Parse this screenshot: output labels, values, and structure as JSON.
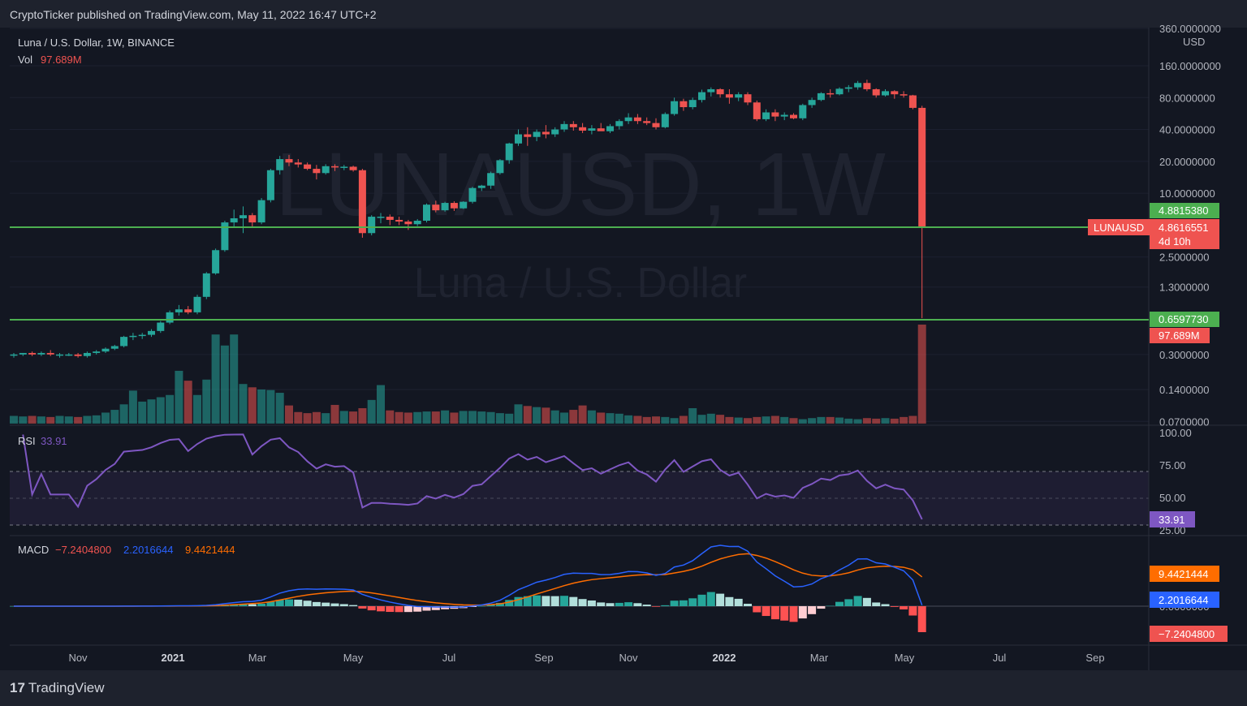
{
  "header": {
    "published": "CryptoTicker published on TradingView.com, May 11, 2022 16:47 UTC+2"
  },
  "legend": {
    "symbol_line": "Luna / U.S. Dollar, 1W, BINANCE",
    "vol_label": "Vol",
    "vol_value": "97.689M",
    "rsi_label": "RSI",
    "rsi_value": "33.91",
    "macd_label": "MACD",
    "macd_v1": "−7.2404800",
    "macd_v2": "2.2016644",
    "macd_v3": "9.4421444"
  },
  "watermark": {
    "symbol": "LUNAUSD, 1W",
    "name": "Luna / U.S. Dollar"
  },
  "price_axis": {
    "unit": "USD",
    "ticks": [
      "360.0000000",
      "160.0000000",
      "80.0000000",
      "40.0000000",
      "20.0000000",
      "10.0000000",
      "2.5000000",
      "1.3000000",
      "0.3000000",
      "0.1400000",
      "0.0700000"
    ]
  },
  "badges": {
    "level_high": "4.8815380",
    "symbol_tag": "LUNAUSD",
    "last_price": "4.8616551",
    "countdown": "4d 10h",
    "level_low": "0.6597730",
    "volume": "97.689M",
    "rsi": "33.91",
    "macd_signal": "9.4421444",
    "macd_line": "2.2016644",
    "macd_hist": "−7.2404800"
  },
  "rsi_axis": [
    "100.00",
    "75.00",
    "50.00",
    "25.00"
  ],
  "macd_axis": [
    "0.0000000"
  ],
  "time_axis": [
    {
      "label": "Nov",
      "bold": false
    },
    {
      "label": "2021",
      "bold": true
    },
    {
      "label": "Mar",
      "bold": false
    },
    {
      "label": "May",
      "bold": false
    },
    {
      "label": "Jul",
      "bold": false
    },
    {
      "label": "Sep",
      "bold": false
    },
    {
      "label": "Nov",
      "bold": false
    },
    {
      "label": "2022",
      "bold": true
    },
    {
      "label": "Mar",
      "bold": false
    },
    {
      "label": "May",
      "bold": false
    },
    {
      "label": "Jul",
      "bold": false
    },
    {
      "label": "Sep",
      "bold": false
    }
  ],
  "footer": {
    "brand": "TradingView",
    "logo_mark": "17"
  },
  "colors": {
    "up": "#26a69a",
    "down": "#ef5350",
    "level": "#4caf50",
    "rsi": "#7e57c2",
    "macd": "#2962ff",
    "signal": "#ff6d00",
    "bg": "#131722"
  },
  "chart_data": {
    "type": "candlestick",
    "title": "Luna / U.S. Dollar, 1W, BINANCE",
    "y_scale": "log",
    "ylim": [
      0.07,
      360
    ],
    "levels": [
      4.881538,
      0.659773
    ],
    "last_price": 4.8616551,
    "candles": [
      [
        0.3,
        0.31,
        0.28,
        0.3
      ],
      [
        0.3,
        0.31,
        0.29,
        0.31
      ],
      [
        0.31,
        0.32,
        0.29,
        0.3
      ],
      [
        0.3,
        0.32,
        0.29,
        0.31
      ],
      [
        0.31,
        0.33,
        0.29,
        0.3
      ],
      [
        0.3,
        0.31,
        0.28,
        0.3
      ],
      [
        0.3,
        0.31,
        0.29,
        0.3
      ],
      [
        0.3,
        0.31,
        0.28,
        0.29
      ],
      [
        0.29,
        0.32,
        0.28,
        0.31
      ],
      [
        0.31,
        0.33,
        0.3,
        0.32
      ],
      [
        0.32,
        0.35,
        0.31,
        0.34
      ],
      [
        0.34,
        0.37,
        0.33,
        0.36
      ],
      [
        0.36,
        0.45,
        0.35,
        0.44
      ],
      [
        0.44,
        0.48,
        0.41,
        0.45
      ],
      [
        0.45,
        0.48,
        0.42,
        0.46
      ],
      [
        0.46,
        0.52,
        0.44,
        0.5
      ],
      [
        0.5,
        0.62,
        0.48,
        0.6
      ],
      [
        0.6,
        0.78,
        0.58,
        0.75
      ],
      [
        0.75,
        0.88,
        0.7,
        0.8
      ],
      [
        0.8,
        0.86,
        0.72,
        0.75
      ],
      [
        0.75,
        1.1,
        0.72,
        1.05
      ],
      [
        1.05,
        1.8,
        1.0,
        1.75
      ],
      [
        1.75,
        3.0,
        1.7,
        2.9
      ],
      [
        2.9,
        5.5,
        2.8,
        5.3
      ],
      [
        5.3,
        7.0,
        4.8,
        5.8
      ],
      [
        5.8,
        7.5,
        4.2,
        6.2
      ],
      [
        6.2,
        6.5,
        4.8,
        5.3
      ],
      [
        5.3,
        9.0,
        5.1,
        8.6
      ],
      [
        8.6,
        17.0,
        8.2,
        16.5
      ],
      [
        16.5,
        22.5,
        15.0,
        21.0
      ],
      [
        21.0,
        23.0,
        18.0,
        19.5
      ],
      [
        19.5,
        21.0,
        17.5,
        18.7
      ],
      [
        18.7,
        19.5,
        16.5,
        17.0
      ],
      [
        17.0,
        18.5,
        13.5,
        15.5
      ],
      [
        15.5,
        18.8,
        15.0,
        18.0
      ],
      [
        18.0,
        18.8,
        16.2,
        17.5
      ],
      [
        17.5,
        18.5,
        16.5,
        17.8
      ],
      [
        17.8,
        18.2,
        16.0,
        16.5
      ],
      [
        16.5,
        17.0,
        3.8,
        4.2
      ],
      [
        4.2,
        6.2,
        4.0,
        6.0
      ],
      [
        6.0,
        6.5,
        5.2,
        6.0
      ],
      [
        6.0,
        6.3,
        5.0,
        5.6
      ],
      [
        5.6,
        6.0,
        5.0,
        5.4
      ],
      [
        5.4,
        5.6,
        4.5,
        5.1
      ],
      [
        5.1,
        5.7,
        4.9,
        5.5
      ],
      [
        5.5,
        8.0,
        5.3,
        7.8
      ],
      [
        7.8,
        8.5,
        6.6,
        6.9
      ],
      [
        6.9,
        8.3,
        6.7,
        8.1
      ],
      [
        8.1,
        8.4,
        6.8,
        7.2
      ],
      [
        7.2,
        8.4,
        7.1,
        8.3
      ],
      [
        8.3,
        11.5,
        8.0,
        11.2
      ],
      [
        11.2,
        12.0,
        10.5,
        11.8
      ],
      [
        11.8,
        16.0,
        11.0,
        15.5
      ],
      [
        15.5,
        21.0,
        15.0,
        20.5
      ],
      [
        20.5,
        30.0,
        19.0,
        29.5
      ],
      [
        29.5,
        40.0,
        28.0,
        36.0
      ],
      [
        36.0,
        42.0,
        28.0,
        34.0
      ],
      [
        34.0,
        40.0,
        31.0,
        38.0
      ],
      [
        38.0,
        44.0,
        33.0,
        36.0
      ],
      [
        36.0,
        42.0,
        34.0,
        40.0
      ],
      [
        40.0,
        48.0,
        38.0,
        45.0
      ],
      [
        45.0,
        48.0,
        39.0,
        42.0
      ],
      [
        42.0,
        46.0,
        37.0,
        39.0
      ],
      [
        39.0,
        44.0,
        36.0,
        41.0
      ],
      [
        41.0,
        46.0,
        39.0,
        38.5
      ],
      [
        38.5,
        45.0,
        37.0,
        43.0
      ],
      [
        43.0,
        50.0,
        40.0,
        48.0
      ],
      [
        48.0,
        57.0,
        45.0,
        52.0
      ],
      [
        52.0,
        56.0,
        45.0,
        48.0
      ],
      [
        48.0,
        52.0,
        44.0,
        46.0
      ],
      [
        46.0,
        51.0,
        40.0,
        42.0
      ],
      [
        42.0,
        58.0,
        41.0,
        56.0
      ],
      [
        56.0,
        80.0,
        54.0,
        74.0
      ],
      [
        74.0,
        78.0,
        60.0,
        65.0
      ],
      [
        65.0,
        80.0,
        62.0,
        76.0
      ],
      [
        76.0,
        95.0,
        72.0,
        90.0
      ],
      [
        90.0,
        100.0,
        82.0,
        96.0
      ],
      [
        96.0,
        98.0,
        80.0,
        86.0
      ],
      [
        86.0,
        96.0,
        70.0,
        80.0
      ],
      [
        80.0,
        90.0,
        74.0,
        86.0
      ],
      [
        86.0,
        90.0,
        68.0,
        72.0
      ],
      [
        72.0,
        75.0,
        48.0,
        50.0
      ],
      [
        50.0,
        62.0,
        48.0,
        58.0
      ],
      [
        58.0,
        62.0,
        48.0,
        53.0
      ],
      [
        53.0,
        58.0,
        49.0,
        55.0
      ],
      [
        55.0,
        57.0,
        50.0,
        51.0
      ],
      [
        51.0,
        70.0,
        49.0,
        68.0
      ],
      [
        68.0,
        80.0,
        64.0,
        76.0
      ],
      [
        76.0,
        90.0,
        74.0,
        88.0
      ],
      [
        88.0,
        96.0,
        80.0,
        86.0
      ],
      [
        86.0,
        100.0,
        84.0,
        97.0
      ],
      [
        97.0,
        105.0,
        90.0,
        100.0
      ],
      [
        100.0,
        115.0,
        95.0,
        110.0
      ],
      [
        110.0,
        118.0,
        92.0,
        96.0
      ],
      [
        96.0,
        98.0,
        80.0,
        84.0
      ],
      [
        84.0,
        96.0,
        82.0,
        92.0
      ],
      [
        92.0,
        94.0,
        78.0,
        86.0
      ],
      [
        86.0,
        92.0,
        80.0,
        84.0
      ],
      [
        84.0,
        85.0,
        62.0,
        64.0
      ],
      [
        64.0,
        67.0,
        0.659773,
        4.8616551
      ]
    ],
    "volume": [
      14,
      13,
      14,
      13,
      12,
      14,
      13,
      12,
      14,
      15,
      20,
      25,
      35,
      60,
      40,
      44,
      48,
      52,
      96,
      78,
      52,
      80,
      162,
      142,
      162,
      72,
      66,
      62,
      61,
      56,
      33,
      21,
      19,
      21,
      19,
      34,
      23,
      22,
      28,
      43,
      70,
      24,
      21,
      20,
      21,
      22,
      22,
      24,
      20,
      23,
      23,
      22,
      21,
      19,
      18,
      35,
      32,
      30,
      29,
      24,
      20,
      25,
      33,
      24,
      20,
      19,
      18,
      15,
      14,
      12,
      13,
      12,
      10,
      14,
      28,
      16,
      18,
      16,
      12,
      11,
      10,
      12,
      13,
      14,
      12,
      10,
      8,
      10,
      12,
      12,
      11,
      9,
      8,
      10,
      9,
      10,
      9,
      12,
      14,
      180
    ]
  }
}
